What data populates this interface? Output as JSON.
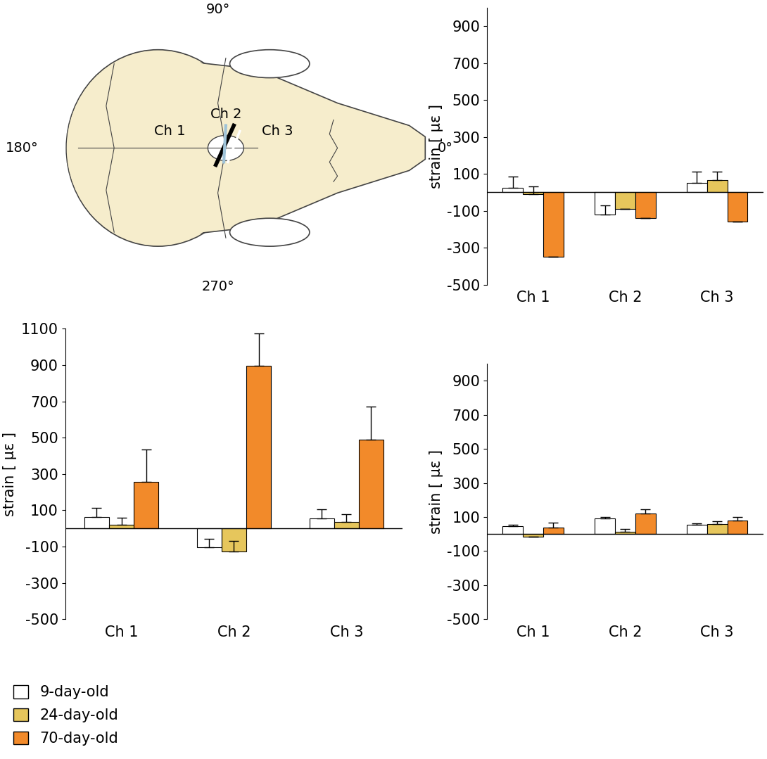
{
  "diagram": {
    "angles": [
      "0°",
      "90°",
      "180°",
      "270°"
    ],
    "channels": [
      "Ch 1",
      "Ch 2",
      "Ch 3"
    ]
  },
  "chart_data": [
    {
      "type": "bar",
      "y_label": "strain [ με ]",
      "categories": [
        "Ch 1",
        "Ch 2",
        "Ch 3"
      ],
      "ylim": [
        -500,
        1000
      ],
      "yticks": [
        -500,
        -300,
        -100,
        100,
        300,
        500,
        700,
        900
      ],
      "series": [
        {
          "name": "9-day-old",
          "color": "#ffffff",
          "values": [
            25,
            -120,
            50
          ],
          "errors": [
            60,
            50,
            60
          ]
        },
        {
          "name": "24-day-old",
          "color": "#e6c65c",
          "values": [
            -10,
            -90,
            65
          ],
          "errors": [
            40,
            0,
            45
          ]
        },
        {
          "name": "70-day-old",
          "color": "#f28a2a",
          "values": [
            -350,
            -140,
            -160
          ],
          "errors": [
            0,
            0,
            0
          ]
        }
      ]
    },
    {
      "type": "bar",
      "y_label": "strain [ με ]",
      "categories": [
        "Ch 1",
        "Ch 2",
        "Ch 3"
      ],
      "ylim": [
        -500,
        1100
      ],
      "yticks": [
        -500,
        -300,
        -100,
        100,
        300,
        500,
        700,
        900,
        1100
      ],
      "legend": "lower left",
      "series": [
        {
          "name": "9-day-old",
          "color": "#ffffff",
          "values": [
            65,
            -105,
            55
          ],
          "errors": [
            50,
            50,
            50
          ]
        },
        {
          "name": "24-day-old",
          "color": "#e6c65c",
          "values": [
            20,
            -125,
            35
          ],
          "errors": [
            40,
            55,
            45
          ]
        },
        {
          "name": "70-day-old",
          "color": "#f28a2a",
          "values": [
            255,
            895,
            490
          ],
          "errors": [
            180,
            180,
            180
          ]
        }
      ]
    },
    {
      "type": "bar",
      "y_label": "strain [ με ]",
      "categories": [
        "Ch 1",
        "Ch 2",
        "Ch 3"
      ],
      "ylim": [
        -500,
        1000
      ],
      "yticks": [
        -500,
        -300,
        -100,
        100,
        300,
        500,
        700,
        900
      ],
      "series": [
        {
          "name": "9-day-old",
          "color": "#ffffff",
          "values": [
            45,
            90,
            55
          ],
          "errors": [
            8,
            8,
            8
          ]
        },
        {
          "name": "24-day-old",
          "color": "#e6c65c",
          "values": [
            -15,
            15,
            60
          ],
          "errors": [
            0,
            15,
            15
          ]
        },
        {
          "name": "70-day-old",
          "color": "#f28a2a",
          "values": [
            40,
            120,
            80
          ],
          "errors": [
            25,
            25,
            20
          ]
        }
      ]
    }
  ]
}
